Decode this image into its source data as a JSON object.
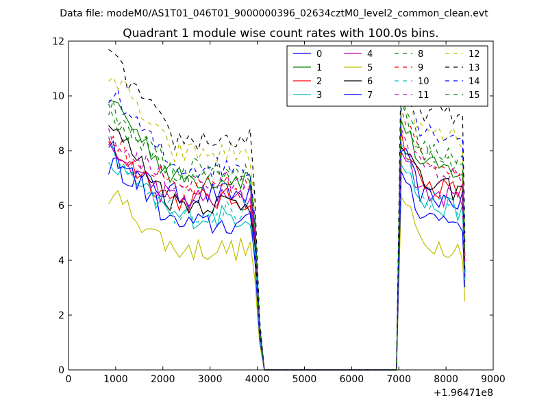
{
  "chart_data": {
    "type": "line",
    "suptitle": "Data file: modeM0/AS1T01_046T01_9000000396_02634cztM0_level2_common_clean.evt",
    "title": "Quadrant 1 module wise count rates with 100.0s bins.",
    "xlabel": "",
    "ylabel": "",
    "x_offset_label": "+1.96471e8",
    "xlim": [
      0,
      9000
    ],
    "ylim": [
      0,
      12
    ],
    "x_ticks": [
      0,
      1000,
      2000,
      3000,
      4000,
      5000,
      6000,
      7000,
      8000,
      9000
    ],
    "y_ticks": [
      0,
      2,
      4,
      6,
      8,
      10,
      12
    ],
    "legend_position": "top-right",
    "legend_columns": 4,
    "segments": {
      "first_active": {
        "start": 850,
        "end": 3850,
        "step": 100
      },
      "drop": [
        3950,
        4050,
        4150
      ],
      "gap": {
        "start": 4150,
        "end": 6950
      },
      "second_active": {
        "start": 7050,
        "end": 8350,
        "step": 100
      },
      "final": 8400
    },
    "series": [
      {
        "name": "0",
        "color": "#0000ff",
        "dash": "solid",
        "start": 7.5,
        "level": 6.4,
        "level2": 6.5
      },
      {
        "name": "1",
        "color": "#008000",
        "dash": "solid",
        "start": 10.0,
        "level": 7.0,
        "level2": 7.6
      },
      {
        "name": "2",
        "color": "#ff0000",
        "dash": "solid",
        "start": 8.2,
        "level": 6.2,
        "level2": 6.9
      },
      {
        "name": "3",
        "color": "#00bfbf",
        "dash": "solid",
        "start": 7.6,
        "level": 5.6,
        "level2": 6.2
      },
      {
        "name": "4",
        "color": "#bf00bf",
        "dash": "solid",
        "start": 8.0,
        "level": 6.2,
        "level2": 6.6
      },
      {
        "name": "5",
        "color": "#bfbf00",
        "dash": "solid",
        "start": 6.5,
        "level": 4.4,
        "level2": 4.8
      },
      {
        "name": "6",
        "color": "#000000",
        "dash": "solid",
        "start": 9.0,
        "level": 6.1,
        "level2": 6.9
      },
      {
        "name": "7",
        "color": "#0000ff",
        "dash": "solid",
        "start": 8.2,
        "level": 5.3,
        "level2": 5.8
      },
      {
        "name": "8",
        "color": "#008000",
        "dash": "dashed",
        "start": 9.3,
        "level": 7.3,
        "level2": 8.0
      },
      {
        "name": "9",
        "color": "#ff0000",
        "dash": "dashed",
        "start": 8.5,
        "level": 6.6,
        "level2": 7.8
      },
      {
        "name": "10",
        "color": "#00bfbf",
        "dash": "dashed",
        "start": 8.1,
        "level": 5.8,
        "level2": 6.3
      },
      {
        "name": "11",
        "color": "#bf00bf",
        "dash": "dashed",
        "start": 8.4,
        "level": 6.8,
        "level2": 7.4
      },
      {
        "name": "12",
        "color": "#bfbf00",
        "dash": "dashed",
        "start": 10.9,
        "level": 7.9,
        "level2": 8.8
      },
      {
        "name": "13",
        "color": "#000000",
        "dash": "dashed",
        "start": 11.5,
        "level": 8.4,
        "level2": 9.6
      },
      {
        "name": "14",
        "color": "#0000ff",
        "dash": "dashed",
        "start": 10.2,
        "level": 7.4,
        "level2": 8.9
      },
      {
        "name": "15",
        "color": "#008000",
        "dash": "dashed",
        "start": 9.6,
        "level": 7.2,
        "level2": 8.2
      }
    ]
  }
}
